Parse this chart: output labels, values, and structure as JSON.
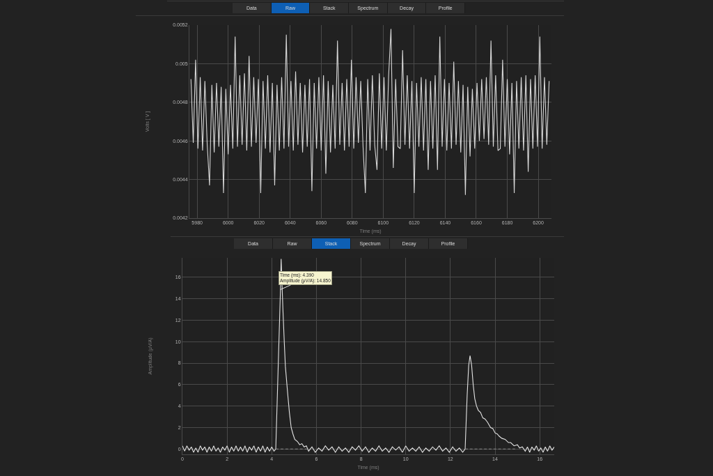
{
  "chart_data": [
    {
      "type": "other",
      "categories": [
        "Data",
        "Raw",
        "Stack",
        "Spectrum",
        "Decay",
        "Profile"
      ],
      "colors": [
        "#2e2e2e",
        "#0e5fb4",
        "#2e2e2e",
        "#2e2e2e",
        "#2e2e2e",
        "#2e2e2e"
      ]
    },
    {
      "type": "line",
      "xlabel": "Time (ms)",
      "ylabel": "Volts [ V ]",
      "xlim": [
        5975,
        6208.5
      ],
      "ylim": [
        0.0042,
        0.0052
      ],
      "xticks": [
        5980,
        6000,
        6020,
        6040,
        6060,
        6080,
        6100,
        6120,
        6140,
        6160,
        6180,
        6200
      ],
      "yticks": [
        0.0042,
        0.0044,
        0.0046,
        0.0048,
        0.005,
        0.0052
      ],
      "grid": true,
      "series": [
        {
          "color": "#d8d8d8",
          "x": [
            5976,
            5977.5,
            5979,
            5980.5,
            5982,
            5983.5,
            5985,
            5986.5,
            5988,
            5989.5,
            5991,
            5992.5,
            5994,
            5995.5,
            5997,
            5998.5,
            6000,
            6001.5,
            6003,
            6004.5,
            6006,
            6007.5,
            6009,
            6010.5,
            6012,
            6013.5,
            6015,
            6016.5,
            6018,
            6019.5,
            6021,
            6022.5,
            6024,
            6025.5,
            6027,
            6028.5,
            6030,
            6031.5,
            6033,
            6034.5,
            6036,
            6037.5,
            6039,
            6040.5,
            6042,
            6043.5,
            6045,
            6046.5,
            6048,
            6049.5,
            6051,
            6052.5,
            6054,
            6055.5,
            6057,
            6058.5,
            6060,
            6061.5,
            6063,
            6064.5,
            6066,
            6067.5,
            6069,
            6070.5,
            6072,
            6073.5,
            6075,
            6076.5,
            6078,
            6079.5,
            6081,
            6082.5,
            6084,
            6085.5,
            6087,
            6088.5,
            6090,
            6091.5,
            6093,
            6094.5,
            6096,
            6097.5,
            6099,
            6100.5,
            6102,
            6103.5,
            6105,
            6106.5,
            6108,
            6109.5,
            6111,
            6112.5,
            6114,
            6115.5,
            6117,
            6118.5,
            6120,
            6121.5,
            6123,
            6124.5,
            6126,
            6127.5,
            6129,
            6130.5,
            6132,
            6133.5,
            6135,
            6136.5,
            6138,
            6139.5,
            6141,
            6142.5,
            6144,
            6145.5,
            6147,
            6148.5,
            6150,
            6151.5,
            6153,
            6154.5,
            6156,
            6157.5,
            6159,
            6160.5,
            6162,
            6163.5,
            6165,
            6166.5,
            6168,
            6169.5,
            6171,
            6172.5,
            6174,
            6175.5,
            6177,
            6178.5,
            6180,
            6181.5,
            6183,
            6184.5,
            6186,
            6187.5,
            6189,
            6190.5,
            6192,
            6193.5,
            6195,
            6196.5,
            6198,
            6199.5,
            6201,
            6202.5,
            6204,
            6205.5,
            6207
          ],
          "values": [
            0.00492,
            0.00459,
            0.00502,
            0.00456,
            0.00493,
            0.00455,
            0.00491,
            0.00458,
            0.00437,
            0.00489,
            0.00454,
            0.0049,
            0.00457,
            0.00488,
            0.00433,
            0.00487,
            0.00453,
            0.00489,
            0.00456,
            0.00514,
            0.00457,
            0.00494,
            0.00458,
            0.00495,
            0.00455,
            0.00504,
            0.00457,
            0.00493,
            0.00459,
            0.00492,
            0.00433,
            0.00491,
            0.00456,
            0.00494,
            0.00454,
            0.0049,
            0.00437,
            0.00489,
            0.00455,
            0.00493,
            0.00456,
            0.00515,
            0.00457,
            0.00491,
            0.00455,
            0.00496,
            0.00458,
            0.0049,
            0.00454,
            0.00489,
            0.00457,
            0.00492,
            0.00434,
            0.0049,
            0.00456,
            0.00493,
            0.00455,
            0.00494,
            0.00443,
            0.00491,
            0.00454,
            0.00489,
            0.00456,
            0.00512,
            0.00458,
            0.0049,
            0.00455,
            0.00492,
            0.00457,
            0.00502,
            0.00456,
            0.00493,
            0.00459,
            0.00491,
            0.00457,
            0.00433,
            0.00492,
            0.00455,
            0.00494,
            0.00458,
            0.00445,
            0.00495,
            0.00456,
            0.00493,
            0.00455,
            0.00494,
            0.00518,
            0.00446,
            0.00492,
            0.00457,
            0.00456,
            0.00507,
            0.00458,
            0.00494,
            0.00456,
            0.00491,
            0.00433,
            0.0049,
            0.00457,
            0.00493,
            0.00455,
            0.00492,
            0.00445,
            0.00491,
            0.00456,
            0.00494,
            0.00445,
            0.00514,
            0.00457,
            0.00492,
            0.00455,
            0.0049,
            0.00456,
            0.00501,
            0.00458,
            0.00491,
            0.00454,
            0.00489,
            0.00432,
            0.00488,
            0.00452,
            0.00487,
            0.00456,
            0.0049,
            0.0046,
            0.00492,
            0.00461,
            0.00493,
            0.00458,
            0.00512,
            0.00457,
            0.00494,
            0.00455,
            0.00456,
            0.00502,
            0.00457,
            0.00492,
            0.00453,
            0.0049,
            0.00433,
            0.00491,
            0.00456,
            0.00493,
            0.00455,
            0.00494,
            0.00444,
            0.00492,
            0.00456,
            0.00494,
            0.00457,
            0.00514,
            0.00456,
            0.00493,
            0.00458,
            0.00491
          ]
        }
      ]
    },
    {
      "type": "other",
      "categories": [
        "Data",
        "Raw",
        "Stack",
        "Spectrum",
        "Decay",
        "Profile"
      ],
      "colors": [
        "#2e2e2e",
        "#2e2e2e",
        "#0e5fb4",
        "#2e2e2e",
        "#2e2e2e",
        "#2e2e2e"
      ]
    },
    {
      "type": "line",
      "xlabel": "Time (ms)",
      "ylabel": "Amplitude (μV/A)",
      "xlim": [
        0,
        16.65
      ],
      "ylim": [
        -0.5,
        17.8
      ],
      "xticks": [
        0,
        2,
        4,
        6,
        8,
        10,
        12,
        14,
        16
      ],
      "yticks": [
        0,
        2,
        4,
        6,
        8,
        10,
        12,
        14,
        16
      ],
      "grid": true,
      "annotations": [
        {
          "text": "Time (ms): 4.390\nAmplitude (μV/A): 14.850",
          "x": 4.39,
          "y": 14.85
        }
      ],
      "series": [
        {
          "color": "#e4e4e4",
          "x": [
            0,
            0.1,
            0.2,
            0.3,
            0.4,
            0.5,
            0.6,
            0.7,
            0.8,
            0.9,
            1,
            1.1,
            1.2,
            1.3,
            1.4,
            1.5,
            1.6,
            1.7,
            1.8,
            1.9,
            2,
            2.1,
            2.2,
            2.3,
            2.4,
            2.5,
            2.6,
            2.7,
            2.8,
            2.9,
            3,
            3.1,
            3.2,
            3.3,
            3.4,
            3.5,
            3.6,
            3.7,
            3.8,
            3.9,
            4,
            4.1,
            4.18,
            4.39,
            4.42,
            4.5,
            4.56,
            4.61,
            4.72,
            4.79,
            4.87,
            4.95,
            5.03,
            5.15,
            5.25,
            5.35,
            5.45,
            5.55,
            5.65,
            5.8,
            5.95,
            6.1,
            6.25,
            6.4,
            6.55,
            6.7,
            6.85,
            7,
            7.15,
            7.3,
            7.45,
            7.6,
            7.75,
            7.9,
            8.05,
            8.2,
            8.35,
            8.5,
            8.65,
            8.8,
            8.95,
            9.1,
            9.25,
            9.4,
            9.55,
            9.7,
            9.85,
            10,
            10.15,
            10.3,
            10.45,
            10.6,
            10.75,
            10.9,
            11.05,
            11.2,
            11.35,
            11.5,
            11.65,
            11.8,
            11.95,
            12.1,
            12.25,
            12.4,
            12.55,
            12.66,
            12.75,
            12.82,
            12.88,
            12.95,
            13.02,
            13.09,
            13.17,
            13.25,
            13.35,
            13.45,
            13.55,
            13.66,
            13.8,
            13.9,
            14,
            14.1,
            14.18,
            14.3,
            14.45,
            14.6,
            14.7,
            14.85,
            15,
            15.1,
            15.22,
            15.35,
            15.45,
            15.55,
            15.65,
            15.75,
            15.85,
            15.95,
            16.05,
            16.15,
            16.25,
            16.35,
            16.45,
            16.55,
            16.65
          ],
          "values": [
            0.3,
            -0.2,
            0.3,
            -0.1,
            0.2,
            -0.3,
            0.1,
            -0.3,
            0.3,
            -0.1,
            0.2,
            -0.3,
            0.2,
            -0.2,
            0.3,
            -0.2,
            0.1,
            -0.3,
            0.2,
            -0.1,
            0.3,
            -0.3,
            0.2,
            -0.2,
            0.3,
            -0.2,
            0.2,
            -0.2,
            0.3,
            -0.3,
            0.2,
            -0.1,
            0.3,
            -0.3,
            0.2,
            -0.2,
            0.3,
            -0.3,
            0.2,
            -0.2,
            0.2,
            -0.2,
            0,
            14.85,
            17.7,
            13,
            10,
            7.7,
            5,
            3.4,
            2,
            1.4,
            0.9,
            0.7,
            0.4,
            0.5,
            0.2,
            0.3,
            -0.2,
            0.2,
            -0.3,
            0.1,
            -0.2,
            0.3,
            -0.1,
            0.2,
            -0.3,
            0.2,
            -0.2,
            0.1,
            -0.3,
            0.2,
            -0.1,
            0.3,
            -0.2,
            0.2,
            -0.3,
            0.1,
            -0.2,
            0.3,
            -0.2,
            0.1,
            -0.3,
            0.2,
            -0.1,
            0.2,
            -0.3,
            0.3,
            -0.2,
            0.1,
            -0.2,
            0.2,
            -0.3,
            0.1,
            -0.2,
            0.2,
            -0.1,
            0.3,
            -0.2,
            0.1,
            -0.3,
            0.2,
            -0.2,
            0.1,
            -0.3,
            0,
            5,
            7.8,
            8.7,
            7.8,
            6,
            4.7,
            4,
            3.6,
            3.4,
            2.9,
            2.8,
            2.5,
            2,
            1.9,
            1.5,
            1.4,
            1.2,
            1,
            0.9,
            0.6,
            0.6,
            0.3,
            0.4,
            0.1,
            0.2,
            -0.2,
            0.2,
            -0.3,
            0.2,
            -0.1,
            0.3,
            -0.2,
            0.1,
            -0.3,
            0.2,
            -0.2,
            0.3,
            -0.1,
            0.2
          ]
        },
        {
          "color": "#8c8c8c",
          "line_style": "dashed",
          "x": [
            4.18,
            5.6
          ],
          "values": [
            0,
            0
          ]
        },
        {
          "color": "#8c8c8c",
          "line_style": "dashed",
          "x": [
            12.66,
            14.9
          ],
          "values": [
            0,
            0
          ]
        }
      ]
    }
  ]
}
